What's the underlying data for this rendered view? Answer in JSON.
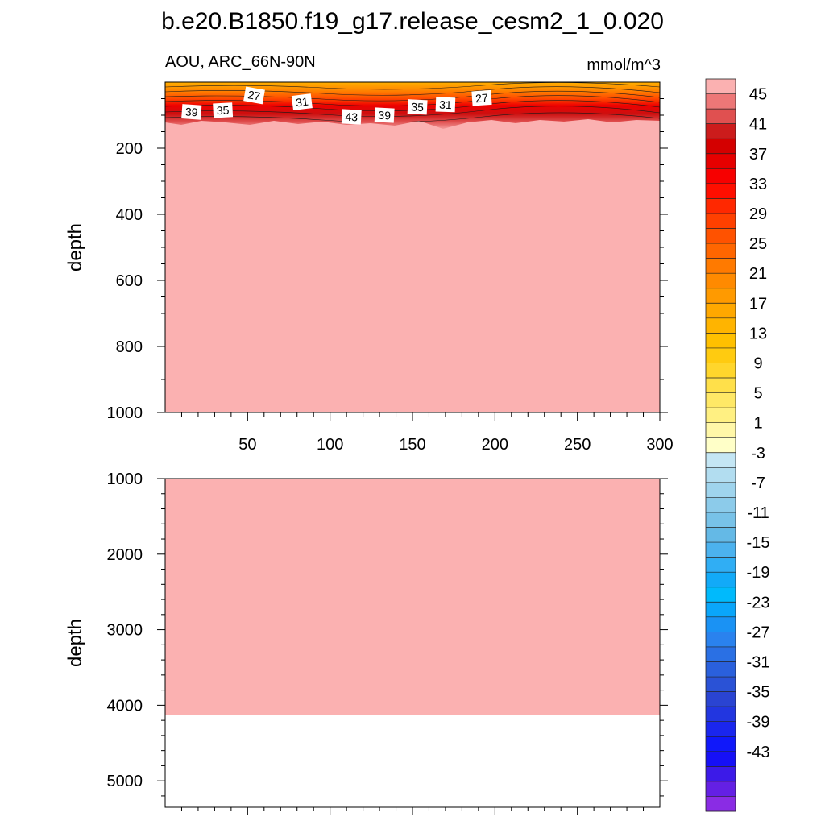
{
  "title": "b.e20.B1850.f19_g17.release_cesm2_1_0.020",
  "chart_data": [
    {
      "type": "heatmap",
      "panel": "upper",
      "left_string": "AOU, ARC_66N-90N",
      "right_string": "mmol/m^3",
      "xlabel": "",
      "ylabel": "depth",
      "xlim": [
        0,
        300
      ],
      "ylim": [
        1000,
        0
      ],
      "x_ticks": [
        50,
        100,
        150,
        200,
        250,
        300
      ],
      "y_ticks": [
        200,
        400,
        600,
        800,
        1000
      ],
      "fill_value_below_contours": 47,
      "gradient_layer_depth_range": [
        0,
        125
      ],
      "contour_labels": [
        {
          "text": "39",
          "x": 16,
          "y": 90
        },
        {
          "text": "35",
          "x": 35,
          "y": 85
        },
        {
          "text": "27",
          "x": 54,
          "y": 40
        },
        {
          "text": "31",
          "x": 83,
          "y": 60
        },
        {
          "text": "43",
          "x": 113,
          "y": 105
        },
        {
          "text": "39",
          "x": 133,
          "y": 100
        },
        {
          "text": "35",
          "x": 153,
          "y": 75
        },
        {
          "text": "31",
          "x": 170,
          "y": 68
        },
        {
          "text": "27",
          "x": 192,
          "y": 48
        }
      ]
    },
    {
      "type": "heatmap",
      "panel": "lower",
      "xlabel": "",
      "ylabel": "depth",
      "xlim": [
        0,
        300
      ],
      "ylim": [
        5350,
        1000
      ],
      "y_ticks": [
        1000,
        2000,
        3000,
        4000,
        5000
      ],
      "fill_value": 47,
      "data_bottom_depth": 4130
    }
  ],
  "colorbar": {
    "labels": [
      "45",
      "41",
      "37",
      "33",
      "29",
      "25",
      "21",
      "17",
      "13",
      "9",
      "5",
      "1",
      "-3",
      "-7",
      "-11",
      "-15",
      "-19",
      "-23",
      "-27",
      "-31",
      "-35",
      "-39",
      "-43"
    ],
    "colors": [
      "#fbb1b1",
      "#ed7777",
      "#e05050",
      "#cc1c1c",
      "#d40000",
      "#e60000",
      "#f70000",
      "#ff0e00",
      "#ff2800",
      "#ff4000",
      "#ff5200",
      "#ff6600",
      "#ff7a00",
      "#ff8a00",
      "#ff9a00",
      "#ffa800",
      "#ffb400",
      "#ffc000",
      "#ffcb10",
      "#ffd62c",
      "#ffe04a",
      "#ffe866",
      "#fff082",
      "#fff7a8",
      "#ffffc8",
      "#c4e6f4",
      "#b2ddf0",
      "#9fd4ed",
      "#8ccbea",
      "#78c2e8",
      "#64b9e6",
      "#4cb2ee",
      "#30aef4",
      "#12aaf8",
      "#00bafc",
      "#0aa6fa",
      "#1a92f4",
      "#2a82ee",
      "#2a70e4",
      "#2a60dc",
      "#2a52d6",
      "#2a44d2",
      "#2236e0",
      "#1a26ee",
      "#1018fa",
      "#1610f6",
      "#3c1ae8",
      "#6420e4",
      "#8a2ce4"
    ]
  }
}
